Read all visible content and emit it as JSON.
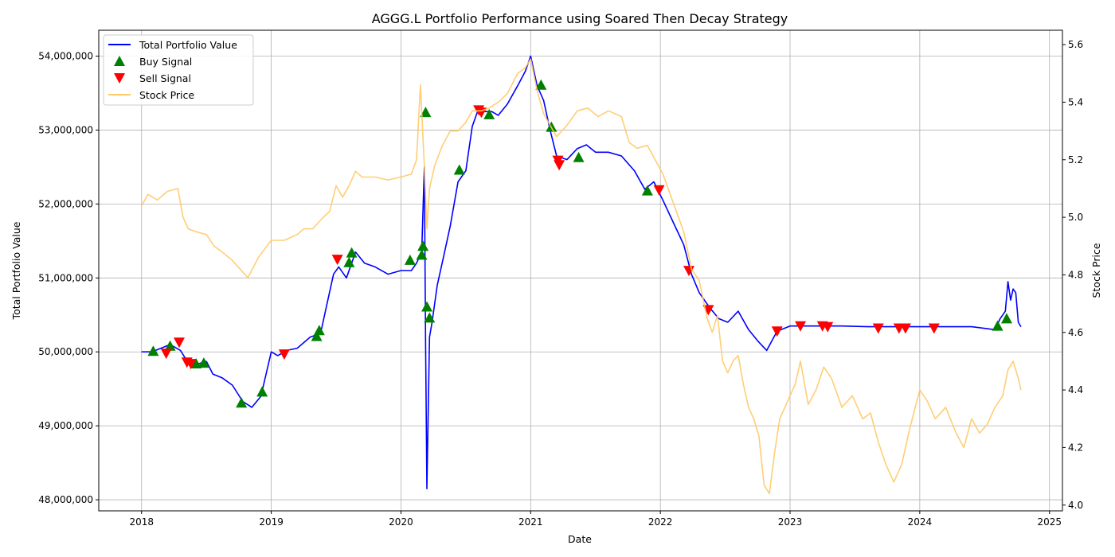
{
  "chart_data": {
    "type": "line",
    "title": "AGGG.L Portfolio Performance using Soared Then Decay Strategy",
    "xlabel": "Date",
    "ylabel_left": "Total Portfolio Value",
    "ylabel_right": "Stock Price",
    "x_ticks": [
      "2018",
      "2019",
      "2020",
      "2021",
      "2022",
      "2023",
      "2024",
      "2025"
    ],
    "y_left_ticks": [
      "48,000,000",
      "49,000,000",
      "50,000,000",
      "51,000,000",
      "52,000,000",
      "53,000,000",
      "54,000,000"
    ],
    "y_right_ticks": [
      "4.0",
      "4.2",
      "4.4",
      "4.6",
      "4.8",
      "5.0",
      "5.2",
      "5.4",
      "5.6"
    ],
    "x_range": [
      2017.67,
      2025.1
    ],
    "y_left_range": [
      47850000,
      54350000
    ],
    "y_right_range": [
      3.98,
      5.65
    ],
    "grid": true,
    "legend_placement": "upper-left",
    "legend": [
      "Total Portfolio Value",
      "Buy Signal",
      "Sell Signal",
      "Stock Price"
    ],
    "colors": {
      "portfolio": "#0000ff",
      "buy": "#008000",
      "sell": "#ff0000",
      "price": "#ffc966"
    },
    "series": [
      {
        "name": "Total Portfolio Value",
        "axis": "left",
        "x": [
          2018.0,
          2018.08,
          2018.15,
          2018.22,
          2018.3,
          2018.36,
          2018.42,
          2018.5,
          2018.55,
          2018.62,
          2018.7,
          2018.78,
          2018.85,
          2018.92,
          2019.0,
          2019.05,
          2019.12,
          2019.2,
          2019.3,
          2019.38,
          2019.43,
          2019.48,
          2019.52,
          2019.58,
          2019.65,
          2019.72,
          2019.8,
          2019.9,
          2020.0,
          2020.08,
          2020.12,
          2020.16,
          2020.18,
          2020.19,
          2020.2,
          2020.22,
          2020.24,
          2020.28,
          2020.33,
          2020.38,
          2020.44,
          2020.5,
          2020.55,
          2020.6,
          2020.65,
          2020.7,
          2020.75,
          2020.82,
          2020.9,
          2020.96,
          2021.0,
          2021.05,
          2021.1,
          2021.15,
          2021.2,
          2021.28,
          2021.36,
          2021.43,
          2021.5,
          2021.6,
          2021.7,
          2021.8,
          2021.88,
          2021.95,
          2022.02,
          2022.1,
          2022.18,
          2022.24,
          2022.3,
          2022.38,
          2022.45,
          2022.52,
          2022.6,
          2022.68,
          2022.75,
          2022.82,
          2022.9,
          2023.0,
          2023.2,
          2023.4,
          2023.6,
          2023.8,
          2024.0,
          2024.2,
          2024.4,
          2024.58,
          2024.62,
          2024.66,
          2024.68,
          2024.7,
          2024.72,
          2024.74,
          2024.76,
          2024.78
        ],
        "values": [
          50000000,
          50000000,
          50050000,
          50100000,
          50020000,
          49850000,
          49830000,
          49870000,
          49700000,
          49650000,
          49550000,
          49330000,
          49250000,
          49400000,
          50000000,
          49950000,
          50020000,
          50050000,
          50200000,
          50250000,
          50650000,
          51050000,
          51150000,
          51000000,
          51350000,
          51200000,
          51150000,
          51050000,
          51100000,
          51100000,
          51200000,
          51350000,
          52500000,
          50100000,
          48150000,
          50200000,
          50400000,
          50900000,
          51300000,
          51700000,
          52300000,
          52450000,
          53050000,
          53300000,
          53250000,
          53250000,
          53200000,
          53350000,
          53600000,
          53800000,
          54000000,
          53600000,
          53400000,
          53000000,
          52650000,
          52600000,
          52750000,
          52800000,
          52700000,
          52700000,
          52650000,
          52450000,
          52200000,
          52300000,
          52050000,
          51750000,
          51450000,
          51050000,
          50800000,
          50600000,
          50450000,
          50400000,
          50550000,
          50300000,
          50150000,
          50020000,
          50280000,
          50350000,
          50350000,
          50350000,
          50340000,
          50340000,
          50340000,
          50340000,
          50340000,
          50300000,
          50450000,
          50550000,
          50950000,
          50700000,
          50850000,
          50800000,
          50400000,
          50340000
        ]
      },
      {
        "name": "Stock Price",
        "axis": "right",
        "x": [
          2018.0,
          2018.05,
          2018.12,
          2018.2,
          2018.28,
          2018.32,
          2018.36,
          2018.42,
          2018.5,
          2018.56,
          2018.62,
          2018.7,
          2018.76,
          2018.82,
          2018.9,
          2019.0,
          2019.1,
          2019.2,
          2019.25,
          2019.32,
          2019.4,
          2019.45,
          2019.5,
          2019.55,
          2019.6,
          2019.65,
          2019.7,
          2019.8,
          2019.9,
          2020.0,
          2020.08,
          2020.12,
          2020.15,
          2020.18,
          2020.2,
          2020.22,
          2020.26,
          2020.32,
          2020.38,
          2020.44,
          2020.5,
          2020.55,
          2020.62,
          2020.68,
          2020.75,
          2020.82,
          2020.9,
          2020.96,
          2021.0,
          2021.05,
          2021.1,
          2021.15,
          2021.2,
          2021.28,
          2021.36,
          2021.44,
          2021.52,
          2021.6,
          2021.7,
          2021.76,
          2021.82,
          2021.9,
          2021.96,
          2022.02,
          2022.1,
          2022.18,
          2022.24,
          2022.3,
          2022.36,
          2022.4,
          2022.44,
          2022.48,
          2022.52,
          2022.56,
          2022.6,
          2022.64,
          2022.68,
          2022.72,
          2022.76,
          2022.8,
          2022.84,
          2022.88,
          2022.92,
          2022.98,
          2023.04,
          2023.08,
          2023.14,
          2023.2,
          2023.26,
          2023.32,
          2023.4,
          2023.48,
          2023.56,
          2023.62,
          2023.68,
          2023.74,
          2023.8,
          2023.86,
          2023.92,
          2024.0,
          2024.06,
          2024.12,
          2024.2,
          2024.28,
          2024.34,
          2024.4,
          2024.46,
          2024.52,
          2024.58,
          2024.64,
          2024.68,
          2024.72,
          2024.76,
          2024.78
        ],
        "values": [
          5.04,
          5.08,
          5.06,
          5.09,
          5.1,
          5.0,
          4.96,
          4.95,
          4.94,
          4.9,
          4.88,
          4.85,
          4.82,
          4.79,
          4.86,
          4.92,
          4.92,
          4.94,
          4.96,
          4.96,
          5.0,
          5.02,
          5.11,
          5.07,
          5.11,
          5.16,
          5.14,
          5.14,
          5.13,
          5.14,
          5.15,
          5.2,
          5.46,
          5.18,
          4.96,
          5.1,
          5.18,
          5.25,
          5.3,
          5.3,
          5.33,
          5.37,
          5.37,
          5.38,
          5.4,
          5.43,
          5.5,
          5.52,
          5.55,
          5.44,
          5.36,
          5.32,
          5.28,
          5.32,
          5.37,
          5.38,
          5.35,
          5.37,
          5.35,
          5.26,
          5.24,
          5.25,
          5.2,
          5.15,
          5.05,
          4.95,
          4.82,
          4.78,
          4.65,
          4.6,
          4.66,
          4.5,
          4.46,
          4.5,
          4.52,
          4.42,
          4.34,
          4.3,
          4.24,
          4.07,
          4.04,
          4.18,
          4.3,
          4.36,
          4.42,
          4.5,
          4.35,
          4.4,
          4.48,
          4.44,
          4.34,
          4.38,
          4.3,
          4.32,
          4.22,
          4.14,
          4.08,
          4.14,
          4.26,
          4.4,
          4.36,
          4.3,
          4.34,
          4.25,
          4.2,
          4.3,
          4.25,
          4.28,
          4.34,
          4.38,
          4.47,
          4.5,
          4.44,
          4.4
        ]
      },
      {
        "name": "Buy Signal",
        "axis": "left",
        "marker": "triangle-up",
        "x": [
          2018.09,
          2018.22,
          2018.42,
          2018.48,
          2018.77,
          2018.93,
          2019.35,
          2019.37,
          2019.6,
          2019.62,
          2020.07,
          2020.16,
          2020.17,
          2020.19,
          2020.2,
          2020.22,
          2020.45,
          2020.68,
          2021.08,
          2021.16,
          2021.37,
          2021.9,
          2024.6,
          2024.67
        ],
        "values": [
          50000000,
          50070000,
          49830000,
          49840000,
          49300000,
          49450000,
          50200000,
          50280000,
          51200000,
          51330000,
          51230000,
          51300000,
          51420000,
          53230000,
          50600000,
          50450000,
          52450000,
          53200000,
          53600000,
          53030000,
          52620000,
          52170000,
          50340000,
          50440000
        ]
      },
      {
        "name": "Sell Signal",
        "axis": "left",
        "marker": "triangle-down",
        "x": [
          2018.19,
          2018.29,
          2018.35,
          2018.38,
          2019.1,
          2019.51,
          2020.6,
          2020.62,
          2021.21,
          2021.22,
          2021.99,
          2022.22,
          2022.37,
          2022.9,
          2023.08,
          2023.25,
          2023.29,
          2023.68,
          2023.84,
          2023.89,
          2024.11
        ],
        "values": [
          49990000,
          50140000,
          49870000,
          49850000,
          49980000,
          51260000,
          53280000,
          53250000,
          52600000,
          52540000,
          52200000,
          51110000,
          50580000,
          50290000,
          50360000,
          50360000,
          50350000,
          50330000,
          50330000,
          50330000,
          50330000
        ]
      }
    ]
  }
}
